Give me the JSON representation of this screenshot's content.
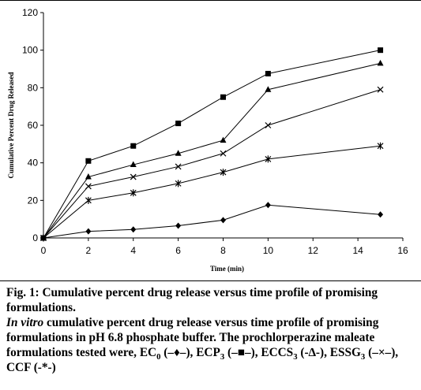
{
  "chart_data": {
    "type": "line",
    "title": "",
    "xlabel": "Time (min)",
    "ylabel": "Cumulative Percent Drug Released",
    "xlim": [
      0,
      16
    ],
    "ylim": [
      0,
      120
    ],
    "xticks": [
      0,
      2,
      4,
      6,
      8,
      10,
      12,
      14,
      16
    ],
    "yticks": [
      0,
      20,
      40,
      60,
      80,
      100,
      120
    ],
    "grid": false,
    "legend": "none",
    "x": [
      0,
      2,
      4,
      6,
      8,
      10,
      15
    ],
    "series": [
      {
        "marker": "square",
        "values": [
          0,
          41,
          49,
          61,
          75,
          87.5,
          100
        ]
      },
      {
        "marker": "triangle",
        "values": [
          0,
          32.5,
          39,
          45,
          52,
          79,
          93
        ]
      },
      {
        "marker": "x",
        "values": [
          0,
          27.5,
          32.5,
          38,
          45,
          60,
          79
        ]
      },
      {
        "marker": "star",
        "values": [
          0,
          20,
          24,
          29,
          35,
          42,
          49
        ]
      },
      {
        "marker": "diamond",
        "values": [
          0,
          3.5,
          4.5,
          6.5,
          9.5,
          17.5,
          12.5
        ]
      }
    ],
    "colors": {
      "line": "#000000",
      "marker": "#000000"
    }
  },
  "caption": {
    "fig_label": "Fig. 1: Cumulative percent drug release versus time profile of promising formulations.",
    "desc_italic": "In vitro",
    "desc_rest": " cumulative percent drug release versus time profile of promising formulations in pH 6.8 phosphate buffer. The prochlorperazine maleate formulations tested were,",
    "f1_name": "EC",
    "f1_sub": "0",
    "f1_sym": "(–♦–),",
    "f2_name": "ECP",
    "f2_sub": "3",
    "f2_sym": "(–■–),",
    "f3_name": "ECCS",
    "f3_sub": "3",
    "f3_sym": "(-∆-),",
    "f4_name": "ESSG",
    "f4_sub": "3",
    "f4_sym": "(–×–),",
    "f5_name": "CCF",
    "f5_sym": "(-*-)"
  }
}
